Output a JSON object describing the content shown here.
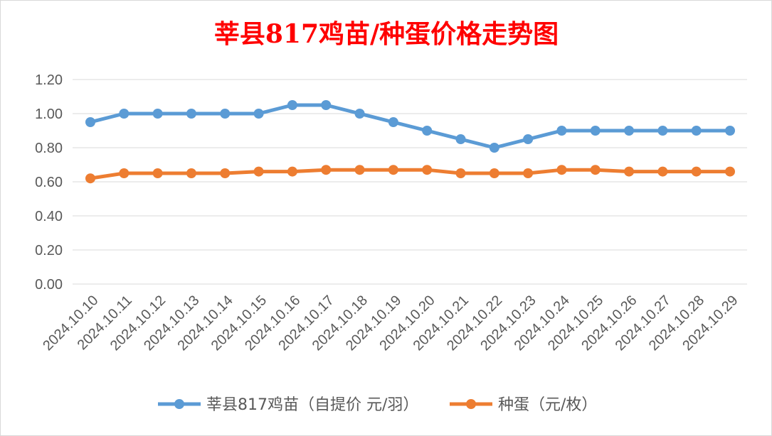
{
  "chart_data": {
    "type": "line",
    "title": "莘县817鸡苗/种蛋价格走势图",
    "xlabel": "",
    "ylabel": "",
    "ylim": [
      0,
      1.2
    ],
    "yticks": [
      "0.00",
      "0.20",
      "0.40",
      "0.60",
      "0.80",
      "1.00",
      "1.20"
    ],
    "grid": true,
    "legend_position": "bottom",
    "categories": [
      "2024.10.10",
      "2024.10.11",
      "2024.10.12",
      "2024.10.13",
      "2024.10.14",
      "2024.10.15",
      "2024.10.16",
      "2024.10.17",
      "2024.10.18",
      "2024.10.19",
      "2024.10.20",
      "2024.10.21",
      "2024.10.22",
      "2024.10.23",
      "2024.10.24",
      "2024.10.25",
      "2024.10.26",
      "2024.10.27",
      "2024.10.28",
      "2024.10.29"
    ],
    "series": [
      {
        "name": "莘县817鸡苗（自提价 元/羽）",
        "color": "#5B9BD5",
        "values": [
          0.95,
          1.0,
          1.0,
          1.0,
          1.0,
          1.0,
          1.05,
          1.05,
          1.0,
          0.95,
          0.9,
          0.85,
          0.8,
          0.85,
          0.9,
          0.9,
          0.9,
          0.9,
          0.9,
          0.9
        ]
      },
      {
        "name": "种蛋（元/枚）",
        "color": "#ED7D31",
        "values": [
          0.62,
          0.65,
          0.65,
          0.65,
          0.65,
          0.66,
          0.66,
          0.67,
          0.67,
          0.67,
          0.67,
          0.65,
          0.65,
          0.65,
          0.67,
          0.67,
          0.66,
          0.66,
          0.66,
          0.66
        ]
      }
    ],
    "title_color": "#FF0000"
  }
}
